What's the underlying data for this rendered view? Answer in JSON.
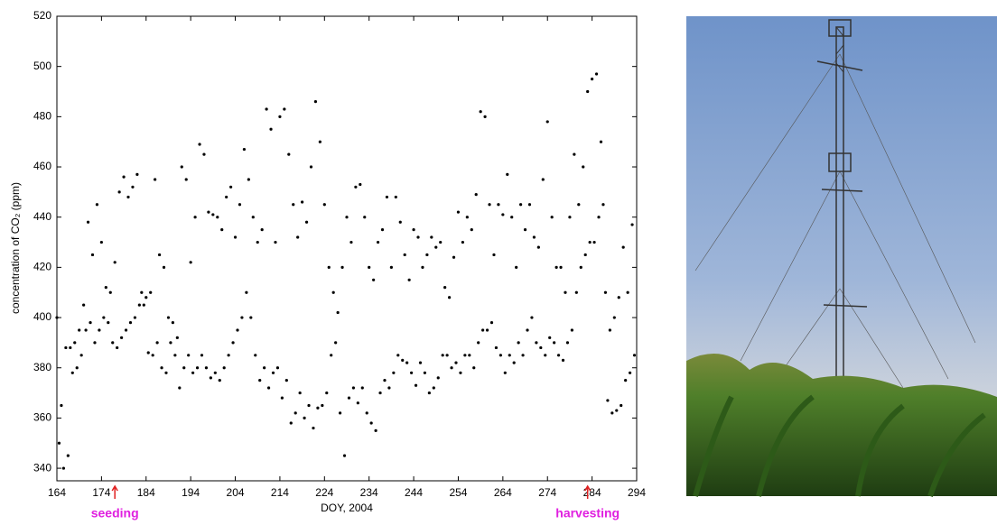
{
  "chart_data": {
    "type": "scatter",
    "xlabel": "DOY, 2004",
    "ylabel": "concentration of CO₂ (ppm)",
    "annotations": [
      {
        "text": "seeding",
        "x": 177
      },
      {
        "text": "harvesting",
        "x": 283
      }
    ],
    "xlim": [
      164,
      294
    ],
    "xticks": [
      164,
      174,
      184,
      194,
      204,
      214,
      224,
      234,
      244,
      254,
      264,
      274,
      284,
      294
    ],
    "ylim": [
      335,
      520
    ],
    "yticks": [
      340,
      360,
      380,
      400,
      420,
      440,
      460,
      480,
      500,
      520
    ],
    "color": "#000000",
    "x": [
      164,
      164.5,
      165,
      165.5,
      166,
      166.5,
      167,
      167.5,
      168,
      168.5,
      169,
      169.5,
      170,
      170.5,
      171,
      171.5,
      172,
      172.5,
      173,
      173.5,
      174,
      174.5,
      175,
      175.5,
      176,
      176.5,
      177,
      177.5,
      178,
      178.5,
      179,
      179.5,
      180,
      180.5,
      181,
      181.5,
      182,
      182.5,
      183,
      183.5,
      184,
      184.5,
      185,
      185.5,
      186,
      186.5,
      187,
      187.5,
      188,
      188.5,
      189,
      189.5,
      190,
      190.5,
      191,
      191.5,
      192,
      192.5,
      193,
      193.5,
      194,
      194.5,
      195,
      195.5,
      196,
      196.5,
      197,
      197.5,
      198,
      198.5,
      199,
      199.5,
      200,
      200.5,
      201,
      201.5,
      202,
      202.5,
      203,
      203.5,
      204,
      204.5,
      205,
      205.5,
      206,
      206.5,
      207,
      207.5,
      208,
      208.5,
      209,
      209.5,
      210,
      210.5,
      211,
      211.5,
      212,
      212.5,
      213,
      213.5,
      214,
      214.5,
      215,
      215.5,
      216,
      216.5,
      217,
      217.5,
      218,
      218.5,
      219,
      219.5,
      220,
      220.5,
      221,
      221.5,
      222,
      222.5,
      223,
      223.5,
      224,
      224.5,
      225,
      225.5,
      226,
      226.5,
      227,
      227.5,
      228,
      228.5,
      229,
      229.5,
      230,
      230.5,
      231,
      231.5,
      232,
      232.5,
      233,
      233.5,
      234,
      234.5,
      235,
      235.5,
      236,
      236.5,
      237,
      237.5,
      238,
      238.5,
      239,
      239.5,
      240,
      240.5,
      241,
      241.5,
      242,
      242.5,
      243,
      243.5,
      244,
      244.5,
      245,
      245.5,
      246,
      246.5,
      247,
      247.5,
      248,
      248.5,
      249,
      249.5,
      250,
      250.5,
      251,
      251.5,
      252,
      252.5,
      253,
      253.5,
      254,
      254.5,
      255,
      255.5,
      256,
      256.5,
      257,
      257.5,
      258,
      258.5,
      259,
      259.5,
      260,
      260.5,
      261,
      261.5,
      262,
      262.5,
      263,
      263.5,
      264,
      264.5,
      265,
      265.5,
      266,
      266.5,
      267,
      267.5,
      268,
      268.5,
      269,
      269.5,
      270,
      270.5,
      271,
      271.5,
      272,
      272.5,
      273,
      273.5,
      274,
      274.5,
      275,
      275.5,
      276,
      276.5,
      277,
      277.5,
      278,
      278.5,
      279,
      279.5,
      280,
      280.5,
      281,
      281.5,
      282,
      282.5,
      283,
      283.5,
      284,
      284.5,
      285,
      285.5,
      286,
      286.5,
      287,
      287.5,
      288,
      288.5,
      289,
      289.5,
      290,
      290.5,
      291,
      291.5,
      292,
      292.5,
      293,
      293.5
    ],
    "values": [
      400,
      350,
      365,
      340,
      388,
      345,
      388,
      378,
      390,
      380,
      395,
      385,
      405,
      395,
      438,
      398,
      425,
      390,
      445,
      395,
      430,
      400,
      412,
      398,
      410,
      390,
      422,
      388,
      450,
      392,
      456,
      395,
      448,
      398,
      452,
      400,
      457,
      405,
      410,
      405,
      408,
      386,
      410,
      385,
      455,
      390,
      425,
      380,
      420,
      378,
      400,
      390,
      398,
      385,
      392,
      372,
      460,
      380,
      455,
      385,
      422,
      378,
      440,
      380,
      469,
      385,
      465,
      380,
      442,
      376,
      441,
      378,
      440,
      375,
      435,
      380,
      448,
      385,
      452,
      390,
      432,
      395,
      445,
      400,
      467,
      410,
      455,
      400,
      440,
      385,
      430,
      375,
      435,
      380,
      483,
      372,
      475,
      378,
      430,
      380,
      480,
      368,
      483,
      375,
      465,
      358,
      445,
      362,
      432,
      370,
      446,
      360,
      438,
      365,
      460,
      356,
      486,
      364,
      470,
      365,
      445,
      370,
      420,
      385,
      410,
      390,
      402,
      362,
      420,
      345,
      440,
      368,
      430,
      372,
      452,
      366,
      453,
      372,
      440,
      362,
      420,
      358,
      415,
      355,
      430,
      370,
      435,
      375,
      448,
      372,
      420,
      378,
      448,
      385,
      438,
      383,
      425,
      382,
      415,
      378,
      435,
      373,
      432,
      382,
      420,
      378,
      425,
      370,
      432,
      372,
      428,
      376,
      430,
      385,
      412,
      385,
      408,
      380,
      424,
      382,
      442,
      378,
      430,
      385,
      440,
      385,
      435,
      380,
      449,
      390,
      482,
      395,
      480,
      395,
      445,
      398,
      425,
      388,
      445,
      385,
      441,
      378,
      457,
      385,
      440,
      382,
      420,
      390,
      445,
      385,
      435,
      395,
      445,
      400,
      432,
      390,
      428,
      388,
      455,
      385,
      478,
      392,
      440,
      390,
      420,
      385,
      420,
      383,
      410,
      390,
      440,
      395,
      465,
      410,
      445,
      420,
      460,
      425,
      490,
      430,
      495,
      430,
      497,
      440,
      470,
      445,
      410,
      367,
      395,
      362,
      400,
      363,
      408,
      365,
      428,
      375,
      410,
      378,
      437,
      385
    ]
  }
}
